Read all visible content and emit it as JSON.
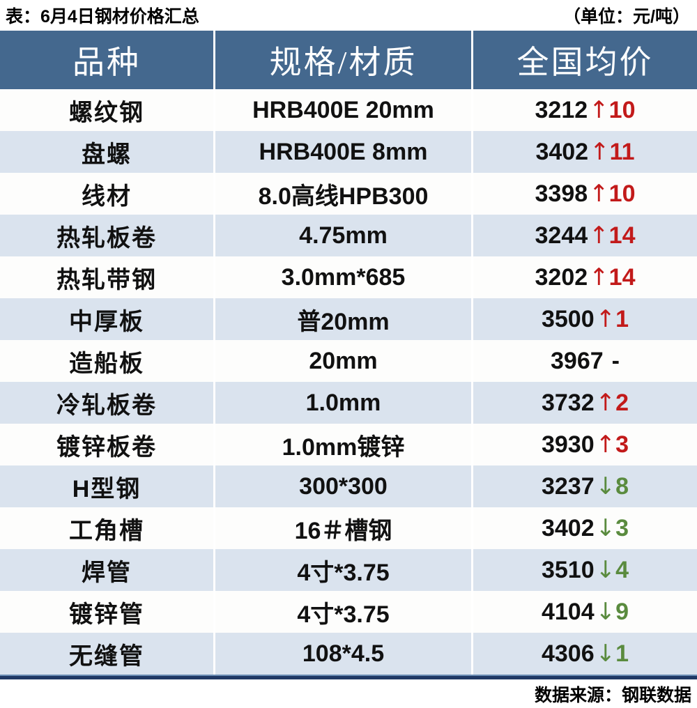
{
  "title": {
    "left": "表：6月4日钢材价格汇总",
    "right": "（单位：元/吨）"
  },
  "icons": {
    "up_arrow": "↑",
    "down_arrow": "↓"
  },
  "colors": {
    "header_bg": "#44688E",
    "stripe": "#DAE3EE",
    "up_red": "#C21A1A",
    "down_green": "#5A8B3E",
    "footer_rule": "#1F3864"
  },
  "footer": {
    "source": "数据来源：钢联数据"
  },
  "chart_data": {
    "type": "table",
    "title": "表：6月4日钢材价格汇总",
    "unit": "元/吨",
    "columns": [
      "品种",
      "规格/材质",
      "全国均价"
    ],
    "rows": [
      {
        "name": "螺纹钢",
        "spec": "HRB400E 20mm",
        "price": "3212",
        "dir": "up",
        "change": "10"
      },
      {
        "name": "盘螺",
        "spec": "HRB400E 8mm",
        "price": "3402",
        "dir": "up",
        "change": "11"
      },
      {
        "name": "线材",
        "spec": "8.0高线HPB300",
        "price": "3398",
        "dir": "up",
        "change": "10"
      },
      {
        "name": "热轧板卷",
        "spec": "4.75mm",
        "price": "3244",
        "dir": "up",
        "change": "14"
      },
      {
        "name": "热轧带钢",
        "spec": "3.0mm*685",
        "price": "3202",
        "dir": "up",
        "change": "14"
      },
      {
        "name": "中厚板",
        "spec": "普20mm",
        "price": "3500",
        "dir": "up",
        "change": "1"
      },
      {
        "name": "造船板",
        "spec": "20mm",
        "price": "3967",
        "dir": "none",
        "change": "-"
      },
      {
        "name": "冷轧板卷",
        "spec": "1.0mm",
        "price": "3732",
        "dir": "up",
        "change": "2"
      },
      {
        "name": "镀锌板卷",
        "spec": "1.0mm镀锌",
        "price": "3930",
        "dir": "up",
        "change": "3"
      },
      {
        "name": "H型钢",
        "spec": "300*300",
        "price": "3237",
        "dir": "down",
        "change": "8"
      },
      {
        "name": "工角槽",
        "spec": "16＃槽钢",
        "price": "3402",
        "dir": "down",
        "change": "3"
      },
      {
        "name": "焊管",
        "spec": "4寸*3.75",
        "price": "3510",
        "dir": "down",
        "change": "4"
      },
      {
        "name": "镀锌管",
        "spec": "4寸*3.75",
        "price": "4104",
        "dir": "down",
        "change": "9"
      },
      {
        "name": "无缝管",
        "spec": "108*4.5",
        "price": "4306",
        "dir": "down",
        "change": "1"
      }
    ],
    "source": "数据来源：钢联数据"
  }
}
